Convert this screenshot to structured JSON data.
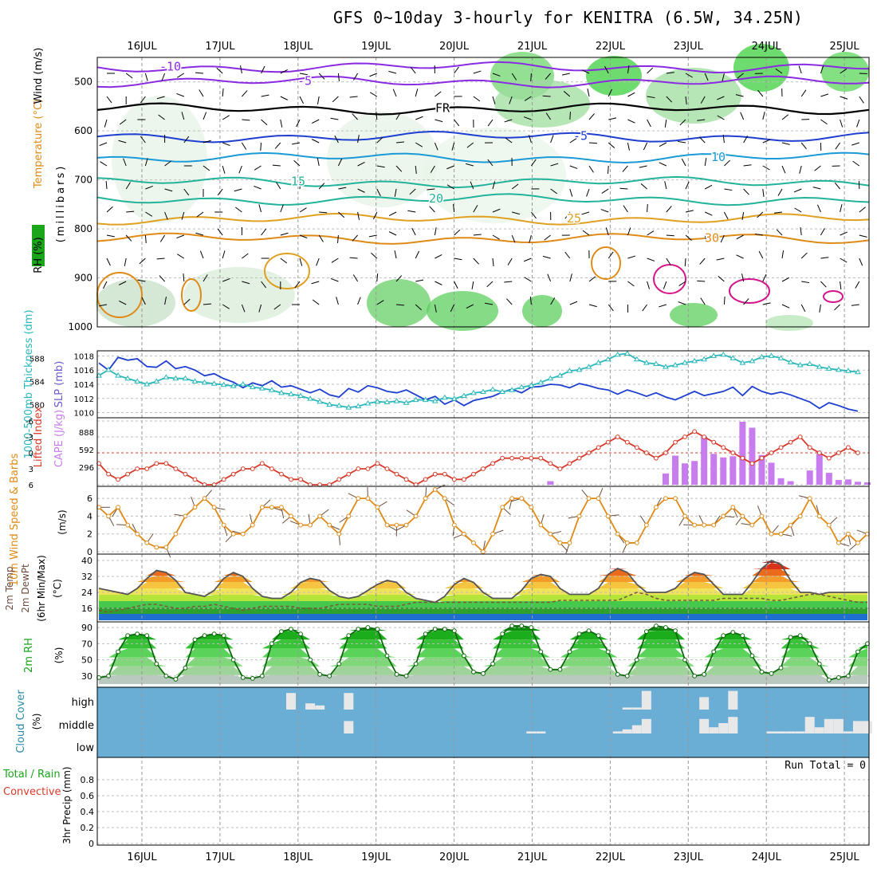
{
  "title": "GFS 0~10day 3-hourly for KENITRA (6.5W, 34.25N)",
  "colors": {
    "purple": "#8a2be2",
    "blue": "#1e3fd0",
    "lightblue": "#1a9ad6",
    "teal": "#22b39a",
    "orange": "#e08a16",
    "magenta": "#d6148c",
    "cyan": "#2ab8bb",
    "red": "#d83a2a",
    "lavender": "#c77dee",
    "cloudblue": "#6aaed6",
    "green": "#1aa51a",
    "pink": "#e85c8a"
  },
  "chart_data": [
    {
      "type": "contour",
      "panel": "upper-air",
      "ylabels": [
        "Wind (m/s)",
        "Temperature (°C)",
        "(millibars)",
        "RH (%)"
      ],
      "x_days": [
        "16JUL",
        "17JUL",
        "18JUL",
        "19JUL",
        "20JUL",
        "21JUL",
        "22JUL",
        "23JUL",
        "24JUL",
        "25JUL"
      ],
      "yticks": [
        500,
        600,
        700,
        800,
        900,
        1000
      ],
      "ylim": [
        1000,
        450
      ],
      "isotherms": [
        {
          "label": "-10",
          "level_mb": 470
        },
        {
          "label": "-5",
          "level_mb": 500
        },
        {
          "label": "FR",
          "level_mb": 555
        },
        {
          "label": "-5",
          "level_mb": 612
        },
        {
          "label": "10",
          "level_mb": 655
        },
        {
          "label": "15",
          "level_mb": 705
        },
        {
          "label": "20",
          "level_mb": 740
        },
        {
          "label": "25",
          "level_mb": 780
        },
        {
          "label": "30",
          "level_mb": 820
        }
      ]
    },
    {
      "type": "line",
      "panel": "pressure-thickness",
      "ylabels": [
        "1000-500mb Thickness (dm)",
        "SLP (mb)"
      ],
      "series": [
        {
          "name": "SLP (mb)",
          "values": [
            1017,
            1016,
            1017.8,
            1017.4,
            1017.6,
            1016.5,
            1016.4,
            1017.3,
            1016.2,
            1016.5,
            1016.0,
            1015.2,
            1015.5,
            1014.8,
            1014.3,
            1013.5,
            1014.2,
            1013.8,
            1014.5,
            1013.6,
            1013.8,
            1013.3,
            1012.8,
            1013.3,
            1012.5,
            1012.2,
            1013.4,
            1012.9,
            1013.8,
            1013.5,
            1013.0,
            1012.8,
            1013.2,
            1012.5,
            1011.8,
            1012.3,
            1011.2,
            1011.8,
            1011.0,
            1011.7,
            1012.0,
            1012.3,
            1012.9,
            1013.3,
            1012.8,
            1013.6,
            1013.7,
            1014.0,
            1013.9,
            1013.5,
            1014.1,
            1013.8,
            1013.4,
            1013.2,
            1012.6,
            1013.2,
            1012.8,
            1012.3,
            1012.8,
            1012.2,
            1011.8,
            1012.4,
            1013.0,
            1012.4,
            1012.7,
            1013.0,
            1013.6,
            1012.4,
            1013.7,
            1013.0,
            1012.6,
            1012.9,
            1012.5,
            1012.0,
            1011.5,
            1010.6,
            1011.4,
            1011.0,
            1010.5,
            1010.2
          ]
        },
        {
          "name": "Thickness (dm)",
          "values": [
            585,
            586,
            585,
            584.5,
            584,
            583.5,
            584,
            584.7,
            584.5,
            584.5,
            584,
            583.8,
            583.6,
            583.4,
            583.2,
            583.5,
            583,
            582.8,
            582.5,
            582,
            581.8,
            581.5,
            581,
            580.5,
            580,
            579.8,
            579.5,
            579.7,
            580.2,
            580.5,
            580.4,
            580.6,
            580.3,
            580.8,
            580.8,
            580.6,
            581.2,
            581,
            581.5,
            582,
            582.2,
            582.6,
            582.2,
            582.5,
            583,
            583.3,
            583.8,
            584.5,
            585,
            585.8,
            586,
            586.5,
            587.2,
            587.8,
            588.6,
            588.8,
            587.8,
            587.2,
            587,
            586.5,
            586.8,
            587.2,
            587.5,
            587.8,
            588.4,
            588.6,
            588.0,
            587.2,
            587.5,
            588.2,
            588.4,
            588.0,
            587.3,
            586.8,
            587.0,
            586.5,
            586.2,
            586.0,
            585.8,
            585.6
          ]
        }
      ],
      "y_left_ticks": [
        580,
        584,
        588
      ],
      "y_right_ticks": [
        1010,
        1012,
        1014,
        1016,
        1018
      ]
    },
    {
      "type": "bar",
      "panel": "instability",
      "ylabels": [
        "Lifted Index",
        "CAPE (J/kg)"
      ],
      "y_li_ticks": [
        "-6",
        "-3",
        "0",
        "3",
        "6"
      ],
      "y_cape_ticks": [
        "888",
        "592",
        "296"
      ],
      "series": [
        {
          "name": "Lifted Index",
          "values": [
            2,
            4,
            5,
            4,
            3,
            3,
            2,
            2,
            3,
            4,
            5,
            6,
            6,
            5,
            4,
            3,
            3,
            2,
            3,
            4,
            5,
            5,
            6,
            6,
            6,
            5,
            4,
            3,
            3,
            2,
            3,
            4,
            5,
            6,
            5,
            4,
            4,
            5,
            5,
            4,
            3,
            2,
            1,
            1,
            1,
            1,
            1,
            2,
            3,
            2,
            1,
            0,
            -1,
            -2,
            -3,
            -2,
            -1,
            0,
            1,
            0,
            -2,
            -3,
            -4,
            -3,
            -2,
            -1,
            0,
            1,
            2,
            1,
            0,
            -1,
            -2,
            -3,
            -1,
            0,
            1,
            0,
            -1,
            0
          ]
        },
        {
          "name": "CAPE (J/kg)",
          "values": [
            0,
            0,
            0,
            0,
            0,
            0,
            0,
            0,
            0,
            0,
            0,
            0,
            0,
            0,
            0,
            0,
            0,
            0,
            0,
            0,
            0,
            0,
            0,
            0,
            0,
            0,
            0,
            0,
            0,
            0,
            0,
            0,
            0,
            0,
            0,
            0,
            0,
            0,
            0,
            0,
            0,
            0,
            0,
            0,
            0,
            0,
            0,
            60,
            0,
            0,
            0,
            0,
            0,
            0,
            0,
            0,
            0,
            0,
            0,
            190,
            490,
            360,
            400,
            810,
            520,
            460,
            480,
            1060,
            960,
            500,
            370,
            110,
            60,
            0,
            240,
            520,
            200,
            80,
            90,
            50,
            40
          ]
        }
      ]
    },
    {
      "type": "line",
      "panel": "wind-10m",
      "ylabels": [
        "10m Wind Speed & Barbs",
        "(m/s)"
      ],
      "yticks": [
        0,
        2,
        4,
        6
      ],
      "series": [
        {
          "name": "10m Wind Speed",
          "values": [
            5,
            4,
            5,
            3,
            2,
            1,
            0.5,
            0.5,
            2,
            4,
            5,
            6,
            5,
            3,
            2,
            2,
            3,
            5,
            5,
            5,
            4,
            3,
            3,
            4,
            3,
            2,
            4,
            6,
            6,
            5,
            3,
            3,
            3,
            4,
            6,
            7,
            6,
            3,
            2,
            1,
            0,
            2,
            5,
            6,
            6,
            5,
            3,
            2,
            1,
            1,
            4,
            6,
            6,
            4,
            2,
            1,
            1,
            3,
            5,
            6,
            6,
            4,
            3,
            3,
            3,
            4,
            5,
            4,
            3,
            4,
            2,
            2,
            3,
            4,
            6,
            4,
            3,
            1,
            2,
            1,
            2
          ]
        }
      ]
    },
    {
      "type": "area",
      "panel": "temperature",
      "ylabels": [
        "2m Temp",
        "2m DewPt",
        "(6hr Min/Max)",
        "(°C)"
      ],
      "yticks": [
        16,
        24,
        32,
        40
      ],
      "series": [
        {
          "name": "2m Temp",
          "values": [
            26,
            25,
            24,
            23,
            26,
            31,
            35,
            34,
            30,
            24,
            23,
            22,
            25,
            31,
            34,
            32,
            26,
            22,
            21,
            21,
            24,
            29,
            31,
            30,
            25,
            22,
            21,
            22,
            25,
            28,
            30,
            29,
            24,
            21,
            20,
            19,
            22,
            28,
            31,
            29,
            24,
            21,
            21,
            21,
            25,
            31,
            33,
            32,
            26,
            23,
            23,
            23,
            26,
            33,
            36,
            34,
            28,
            24,
            24,
            24,
            26,
            31,
            34,
            33,
            28,
            23,
            23,
            23,
            29,
            36,
            40,
            38,
            30,
            24,
            24,
            23,
            24,
            24,
            24,
            24,
            24
          ]
        },
        {
          "name": "2m DewPt",
          "values": [
            15,
            14,
            15,
            16,
            17,
            18,
            18,
            17,
            16,
            16,
            17,
            17,
            18,
            17,
            16,
            15,
            16,
            17,
            17,
            17,
            17,
            16,
            16,
            16,
            17,
            18,
            18,
            18,
            18,
            17,
            17,
            17,
            18,
            19,
            19,
            19,
            19,
            19,
            19,
            19,
            19,
            19,
            19,
            19,
            19,
            19,
            19,
            19,
            20,
            20,
            20,
            20,
            20,
            20,
            20,
            22,
            24,
            23,
            21,
            20,
            20,
            20,
            20,
            20,
            20,
            21,
            21,
            21,
            21,
            21,
            20,
            20,
            21,
            22,
            23,
            23,
            22,
            21,
            20,
            19,
            19
          ]
        }
      ]
    },
    {
      "type": "area",
      "panel": "relative-humidity",
      "ylabels": [
        "2m RH",
        "(%)"
      ],
      "yticks": [
        30,
        50,
        70,
        90
      ],
      "series": [
        {
          "name": "2m RH",
          "values": [
            28,
            30,
            60,
            80,
            82,
            80,
            45,
            30,
            26,
            40,
            75,
            80,
            82,
            80,
            50,
            28,
            27,
            30,
            70,
            85,
            88,
            82,
            50,
            32,
            30,
            45,
            80,
            88,
            90,
            88,
            55,
            32,
            30,
            45,
            82,
            88,
            88,
            86,
            55,
            35,
            33,
            45,
            82,
            92,
            92,
            90,
            60,
            38,
            38,
            60,
            82,
            86,
            80,
            60,
            32,
            30,
            50,
            85,
            92,
            90,
            86,
            50,
            30,
            32,
            60,
            80,
            84,
            80,
            55,
            35,
            33,
            40,
            78,
            80,
            70,
            45,
            25,
            28,
            30,
            60,
            70,
            72,
            60
          ]
        }
      ]
    },
    {
      "type": "bar",
      "panel": "cloud-cover",
      "ylabels": [
        "Cloud Cover",
        "(%)"
      ],
      "yticks": [
        "high",
        "middle",
        "low"
      ],
      "series": [
        {
          "name": "high",
          "values": [
            0,
            0,
            0,
            0,
            0,
            0,
            0,
            0,
            0,
            0,
            0,
            0,
            0,
            0,
            0,
            0,
            0,
            0,
            0,
            0,
            80,
            0,
            30,
            20,
            0,
            0,
            80,
            0,
            0,
            0,
            0,
            0,
            0,
            0,
            0,
            0,
            0,
            0,
            0,
            0,
            0,
            0,
            0,
            0,
            0,
            0,
            0,
            0,
            0,
            0,
            0,
            0,
            0,
            0,
            0,
            10,
            10,
            90,
            0,
            0,
            0,
            0,
            0,
            60,
            0,
            0,
            90,
            0,
            0,
            0,
            0,
            0,
            0,
            0,
            0,
            0,
            0,
            0,
            0,
            0,
            0
          ]
        },
        {
          "name": "middle",
          "values": [
            0,
            0,
            0,
            0,
            0,
            0,
            0,
            0,
            0,
            0,
            0,
            0,
            0,
            0,
            0,
            0,
            0,
            0,
            0,
            0,
            0,
            0,
            0,
            0,
            0,
            0,
            60,
            0,
            0,
            0,
            0,
            0,
            0,
            0,
            0,
            0,
            0,
            0,
            0,
            0,
            0,
            0,
            0,
            0,
            0,
            10,
            10,
            0,
            0,
            0,
            0,
            0,
            0,
            0,
            10,
            20,
            40,
            70,
            0,
            0,
            0,
            0,
            0,
            70,
            30,
            50,
            80,
            0,
            0,
            0,
            10,
            10,
            10,
            10,
            80,
            30,
            70,
            70,
            10,
            60,
            60,
            60
          ]
        },
        {
          "name": "low",
          "values": [
            0,
            0,
            0,
            0,
            0,
            0,
            0,
            0,
            0,
            0,
            0,
            0,
            0,
            0,
            0,
            0,
            0,
            0,
            0,
            0,
            0,
            0,
            0,
            0,
            0,
            0,
            0,
            0,
            0,
            0,
            0,
            0,
            0,
            0,
            0,
            0,
            0,
            0,
            0,
            0,
            0,
            0,
            0,
            0,
            0,
            0,
            0,
            0,
            0,
            0,
            0,
            0,
            0,
            0,
            0,
            0,
            0,
            0,
            0,
            0,
            0,
            0,
            0,
            0,
            0,
            0,
            0,
            0,
            0,
            0,
            0,
            0,
            0,
            0,
            0,
            0,
            0,
            0,
            0,
            0,
            0
          ]
        }
      ]
    },
    {
      "type": "bar",
      "panel": "precipitation",
      "ylabels": [
        "3hr Precip (mm)",
        "Total / Rain",
        "Convective"
      ],
      "yticks": [
        "0",
        "0.2",
        "0.4",
        "0.6",
        "0.8"
      ],
      "ylim": [
        0,
        1
      ],
      "annotation": "Run Total = 0",
      "series": [
        {
          "name": "Total / Rain",
          "values": []
        }
      ]
    }
  ]
}
